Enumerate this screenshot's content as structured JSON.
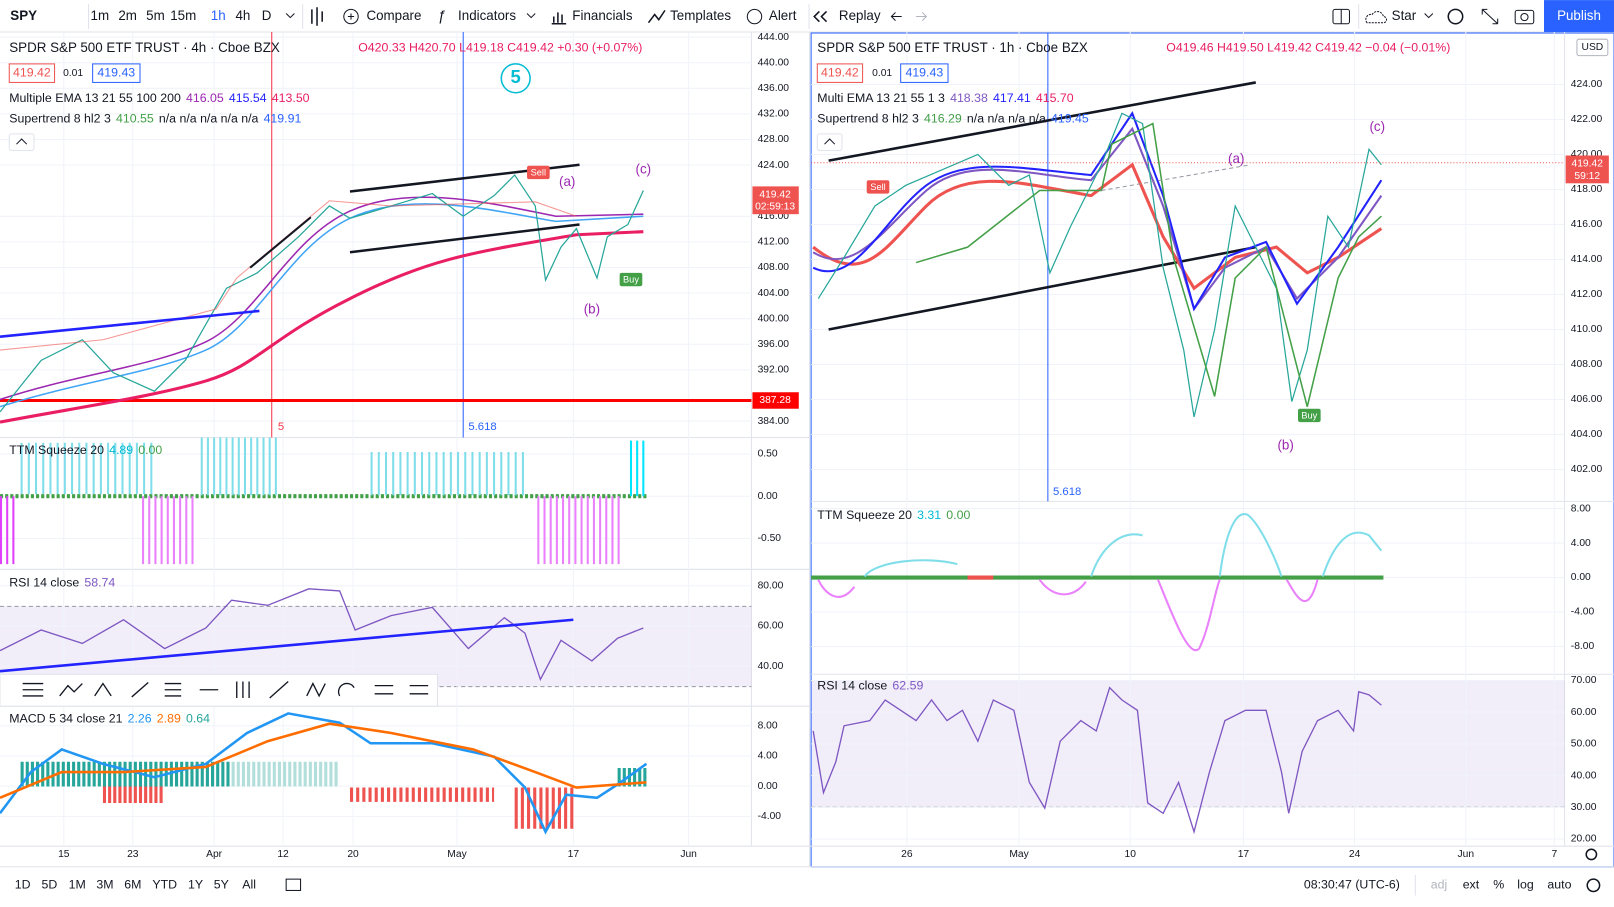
{
  "toolbar": {
    "symbol": "SPY",
    "intervals": [
      "1m",
      "2m",
      "5m",
      "15m",
      "1h",
      "4h",
      "D"
    ],
    "compare": "Compare",
    "indicators": "Indicators",
    "financials": "Financials",
    "templates": "Templates",
    "alert": "Alert",
    "replay": "Replay",
    "star": "Star",
    "publish": "Publish"
  },
  "left": {
    "title": "SPDR S&P 500 ETF TRUST · 4h · Cboe BZX",
    "ohlc": "O420.33 H420.70 L419.18 C419.42 +0.30 (+0.07%)",
    "bid": "419.42",
    "spread": "0.01",
    "ask": "419.43",
    "ema": {
      "name": "Multiple EMA 13 21 55 100 200",
      "values": [
        "416.05",
        "415.54",
        "413.50"
      ]
    },
    "supertrend": {
      "name": "Supertrend 8 hl2 3",
      "values": [
        "410.55",
        "n/a n/a n/a n/a n/a",
        "419.91"
      ]
    },
    "ttm": {
      "name": "TTM Squeeze 20",
      "values": [
        "4.89",
        "0.00"
      ]
    },
    "rsi": {
      "name": "RSI 14 close",
      "values": [
        "58.74"
      ]
    },
    "macd": {
      "name": "MACD 5 34 close 21",
      "values": [
        "2.26",
        "2.89",
        "0.64"
      ]
    },
    "price_axis": [
      {
        "value": 444,
        "label": "444.00"
      },
      {
        "value": 440,
        "label": "440.00"
      },
      {
        "value": 436,
        "label": "436.00"
      },
      {
        "value": 432,
        "label": "432.00"
      },
      {
        "value": 428,
        "label": "428.00"
      },
      {
        "value": 424,
        "label": "424.00"
      },
      {
        "value": 416,
        "label": "416.00"
      },
      {
        "value": 412,
        "label": "412.00"
      },
      {
        "value": 408,
        "label": "408.00"
      },
      {
        "value": 404,
        "label": "404.00"
      },
      {
        "value": 400,
        "label": "400.00"
      },
      {
        "value": 396,
        "label": "396.00"
      },
      {
        "value": 392,
        "label": "392.00"
      },
      {
        "value": 384,
        "label": "384.00"
      }
    ],
    "ttm_axis": [
      {
        "value": 0.5,
        "label": "0.50"
      },
      {
        "value": 0,
        "label": "0.00"
      },
      {
        "value": -0.5,
        "label": "-0.50"
      }
    ],
    "rsi_axis": [
      {
        "value": 80,
        "label": "80.00"
      },
      {
        "value": 60,
        "label": "60.00"
      },
      {
        "value": 40,
        "label": "40.00"
      }
    ],
    "macd_axis": [
      {
        "value": 8,
        "label": "8.00"
      },
      {
        "value": 4,
        "label": "4.00"
      },
      {
        "value": 0,
        "label": "0.00"
      },
      {
        "value": -4,
        "label": "-4.00"
      }
    ],
    "time_axis": [
      "15",
      "23",
      "Apr",
      "12",
      "20",
      "May",
      "17",
      "Jun"
    ],
    "last_price": "419.42",
    "countdown": "02:59:13",
    "level": "387.28",
    "annotations": {
      "wave5": "5",
      "a": "(a)",
      "b": "(b)",
      "c": "(c)",
      "sell": "Sell",
      "buy": "Buy",
      "fib5": "5",
      "fib": "5.618"
    }
  },
  "right": {
    "title": "SPDR S&P 500 ETF TRUST · 1h · Cboe BZX",
    "ohlc": "O419.46 H419.50 L419.42 C419.42 −0.04 (−0.01%)",
    "bid": "419.42",
    "spread": "0.01",
    "ask": "419.43",
    "ema": {
      "name": "Multi EMA 13 21 55 1 3",
      "values": [
        "418.38",
        "417.41",
        "415.70"
      ]
    },
    "supertrend": {
      "name": "Supertrend 8 hl2 3",
      "values": [
        "416.29",
        "n/a n/a n/a n/a",
        "419.45"
      ]
    },
    "ttm": {
      "name": "TTM Squeeze 20",
      "values": [
        "3.31",
        "0.00"
      ]
    },
    "rsi": {
      "name": "RSI 14 close",
      "values": [
        "62.59"
      ]
    },
    "currency": "USD",
    "price_axis": [
      {
        "value": 424,
        "label": "424.00"
      },
      {
        "value": 422,
        "label": "422.00"
      },
      {
        "value": 420,
        "label": "420.00"
      },
      {
        "value": 418,
        "label": "418.00"
      },
      {
        "value": 416,
        "label": "416.00"
      },
      {
        "value": 414,
        "label": "414.00"
      },
      {
        "value": 412,
        "label": "412.00"
      },
      {
        "value": 410,
        "label": "410.00"
      },
      {
        "value": 408,
        "label": "408.00"
      },
      {
        "value": 406,
        "label": "406.00"
      },
      {
        "value": 404,
        "label": "404.00"
      },
      {
        "value": 402,
        "label": "402.00"
      }
    ],
    "ttm_axis": [
      {
        "value": 8,
        "label": "8.00"
      },
      {
        "value": 4,
        "label": "4.00"
      },
      {
        "value": 0,
        "label": "0.00"
      },
      {
        "value": -4,
        "label": "-4.00"
      },
      {
        "value": -8,
        "label": "-8.00"
      }
    ],
    "rsi_axis": [
      {
        "value": 70,
        "label": "70.00"
      },
      {
        "value": 60,
        "label": "60.00"
      },
      {
        "value": 50,
        "label": "50.00"
      },
      {
        "value": 40,
        "label": "40.00"
      },
      {
        "value": 30,
        "label": "30.00"
      },
      {
        "value": 20,
        "label": "20.00"
      }
    ],
    "time_axis": [
      "26",
      "May",
      "10",
      "17",
      "24",
      "Jun",
      "7"
    ],
    "last_price": "419.42",
    "countdown": "59:12",
    "annotations": {
      "a": "(a)",
      "b": "(b)",
      "c": "(c)",
      "sell": "Sell",
      "buy": "Buy",
      "fib": "5.618"
    }
  },
  "bottom": {
    "ranges": [
      "1D",
      "5D",
      "1M",
      "3M",
      "6M",
      "YTD",
      "1Y",
      "5Y",
      "All"
    ],
    "clock": "08:30:47 (UTC-6)",
    "options": [
      "adj",
      "ext",
      "%",
      "log",
      "auto"
    ]
  }
}
